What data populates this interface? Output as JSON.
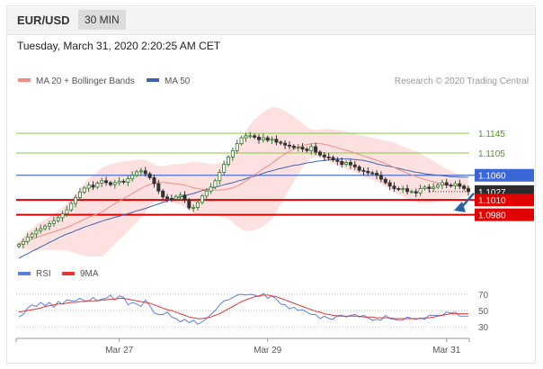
{
  "header": {
    "symbol": "EUR/USD",
    "timeframe": "30 MIN"
  },
  "datetime": "Tuesday, March 31, 2020 2:20:25 AM CET",
  "credit": "Research © 2020 Trading Central",
  "legend": {
    "bollinger_label": "MA 20 + Bollinger Bands",
    "bollinger_color": "#f28b82",
    "ma50_label": "MA 50",
    "ma50_color": "#3f63b6"
  },
  "rsi_legend": {
    "rsi_label": "RSI",
    "rsi_color": "#5b7fe0",
    "ma9_label": "9MA",
    "ma9_color": "#e53935"
  },
  "colors": {
    "target_line": "#8bc34a",
    "pivot_line": "#4a6fd0",
    "support_line": "#e00000",
    "candle_up": "#2d7a2d",
    "candle_down": "#333333",
    "bb_fill": "#fcd7d5",
    "arrow": "#2a62a8"
  },
  "chart_data": {
    "type": "candlestick",
    "x_tick_labels": [
      {
        "label": "Mar 27",
        "index": 23
      },
      {
        "label": "Mar 29",
        "index": 57
      },
      {
        "label": "Mar 31",
        "index": 98
      }
    ],
    "price_range": [
      1.089,
      1.124
    ],
    "levels": [
      {
        "label": "1.1145",
        "value": 1.1145,
        "kind": "target"
      },
      {
        "label": "1.1105",
        "value": 1.1105,
        "kind": "target"
      },
      {
        "label": "1.1060",
        "value": 1.106,
        "kind": "pivot"
      },
      {
        "label": "1.1027",
        "value": 1.1027,
        "kind": "current"
      },
      {
        "label": "1.1010",
        "value": 1.101,
        "kind": "support"
      },
      {
        "label": "1.0980",
        "value": 1.098,
        "kind": "support"
      }
    ],
    "close": [
      1.092,
      1.0926,
      1.0935,
      1.0941,
      1.0948,
      1.0952,
      1.0957,
      1.0962,
      1.0968,
      1.0974,
      1.0982,
      1.099,
      1.1003,
      1.1015,
      1.1026,
      1.1034,
      1.104,
      1.1036,
      1.1044,
      1.1049,
      1.1045,
      1.1041,
      1.1045,
      1.1048,
      1.1046,
      1.1053,
      1.106,
      1.1067,
      1.1069,
      1.1063,
      1.1055,
      1.1043,
      1.1028,
      1.1016,
      1.1013,
      1.1012,
      1.1017,
      1.102,
      1.101,
      1.0994,
      1.0995,
      1.1005,
      1.1018,
      1.1028,
      1.1036,
      1.1049,
      1.1066,
      1.1082,
      1.1097,
      1.111,
      1.1124,
      1.1136,
      1.114,
      1.114,
      1.1137,
      1.1132,
      1.1136,
      1.1131,
      1.1133,
      1.1127,
      1.1125,
      1.1121,
      1.1119,
      1.1116,
      1.1117,
      1.1113,
      1.111,
      1.1118,
      1.1107,
      1.1101,
      1.1097,
      1.1096,
      1.1091,
      1.1088,
      1.1082,
      1.1086,
      1.1081,
      1.1077,
      1.107,
      1.1068,
      1.1065,
      1.1064,
      1.106,
      1.1052,
      1.1045,
      1.1038,
      1.1033,
      1.1032,
      1.1033,
      1.1027,
      1.1027,
      1.1024,
      1.1033,
      1.1036,
      1.1033,
      1.1036,
      1.104,
      1.1045,
      1.104,
      1.1039,
      1.1043,
      1.1038,
      1.1033,
      1.1027
    ],
    "ma50": [
      1.0892,
      1.0897,
      1.0901,
      1.0906,
      1.091,
      1.0915,
      1.0919,
      1.0924,
      1.0928,
      1.0933,
      1.0937,
      1.0941,
      1.0944,
      1.0948,
      1.0951,
      1.0955,
      1.0958,
      1.0961,
      1.0964,
      1.0967,
      1.097,
      1.0972,
      1.0975,
      1.0977,
      1.098,
      1.0982,
      1.0985,
      1.0988,
      1.099,
      1.0993,
      1.0996,
      1.0999,
      1.1002,
      1.1005,
      1.1008,
      1.1011,
      1.1013,
      1.1016,
      1.1018,
      1.1021,
      1.1023,
      1.1026,
      1.1029,
      1.1031,
      1.1033,
      1.1036,
      1.1038,
      1.1041,
      1.1043,
      1.1045,
      1.1048,
      1.105,
      1.1053,
      1.1056,
      1.1058,
      1.1061,
      1.1064,
      1.1067,
      1.1069,
      1.1072,
      1.1074,
      1.1076,
      1.1078,
      1.108,
      1.1081,
      1.1083,
      1.1085,
      1.1086,
      1.1088,
      1.1089,
      1.109,
      1.1091,
      1.1092,
      1.1093,
      1.1093,
      1.1093,
      1.1093,
      1.1092,
      1.1091,
      1.109,
      1.1088,
      1.1086,
      1.1083,
      1.1081,
      1.1079,
      1.1078,
      1.1076,
      1.1074,
      1.1072,
      1.107,
      1.1068,
      1.1066,
      1.1065,
      1.1063,
      1.1062,
      1.1061,
      1.106,
      1.1059,
      1.1058,
      1.1057,
      1.1057,
      1.1056,
      1.1056,
      1.1056
    ],
    "rsi_levels": [
      70,
      50,
      30
    ],
    "rsi": [
      42,
      45,
      53,
      57,
      55,
      60,
      56,
      60,
      54,
      61,
      58,
      63,
      62,
      62,
      65,
      62,
      62,
      66,
      62,
      64,
      65,
      69,
      63,
      68,
      66,
      57,
      60,
      58,
      55,
      63,
      56,
      47,
      45,
      45,
      48,
      42,
      40,
      36,
      39,
      35,
      38,
      33,
      36,
      40,
      45,
      50,
      57,
      62,
      63,
      66,
      69,
      70,
      69,
      70,
      69,
      67,
      71,
      65,
      68,
      64,
      58,
      57,
      52,
      54,
      50,
      51,
      48,
      45,
      45,
      40,
      43,
      40,
      39,
      44,
      44,
      42,
      44,
      45,
      42,
      44,
      41,
      38,
      39,
      38,
      44,
      40,
      39,
      38,
      38,
      42,
      40,
      39,
      41,
      39,
      44,
      44,
      44,
      44,
      48,
      47,
      48,
      43,
      43,
      43
    ],
    "rsi_ma9": [
      48,
      49,
      50,
      51,
      52,
      53,
      55,
      56,
      57,
      58,
      58,
      59,
      60,
      60,
      61,
      61,
      62,
      62,
      62,
      63,
      63,
      64,
      64,
      65,
      65,
      64,
      63,
      62,
      61,
      60,
      59,
      57,
      55,
      53,
      51,
      50,
      48,
      46,
      44,
      42,
      41,
      40,
      40,
      41,
      42,
      44,
      46,
      49,
      52,
      55,
      58,
      61,
      63,
      65,
      67,
      68,
      69,
      69,
      68,
      67,
      65,
      63,
      61,
      59,
      57,
      55,
      53,
      51,
      49,
      48,
      46,
      45,
      44,
      43,
      43,
      43,
      43,
      43,
      43,
      42,
      42,
      42,
      41,
      41,
      41,
      41,
      40,
      40,
      40,
      40,
      40,
      40,
      40,
      41,
      41,
      42,
      43,
      44,
      45,
      46,
      46,
      46,
      46,
      46
    ]
  }
}
